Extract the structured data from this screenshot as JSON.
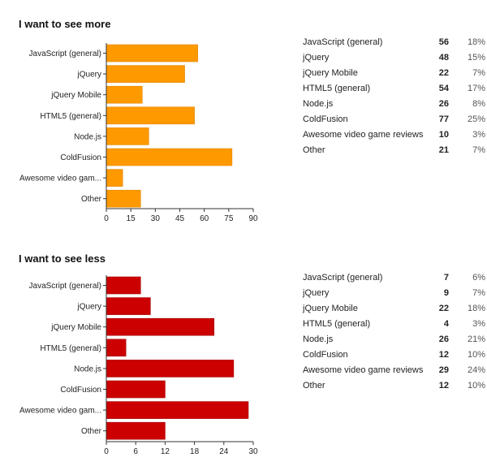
{
  "chart_data": [
    {
      "type": "bar",
      "orientation": "horizontal",
      "title": "I want to see more",
      "categories": [
        "JavaScript (general)",
        "jQuery",
        "jQuery Mobile",
        "HTML5 (general)",
        "Node.js",
        "ColdFusion",
        "Awesome video gam...",
        "Other"
      ],
      "values": [
        56,
        48,
        22,
        54,
        26,
        77,
        10,
        21
      ],
      "xlim": [
        0,
        90
      ],
      "xticks": [
        0,
        15,
        30,
        45,
        60,
        75,
        90
      ],
      "color": "#ff9900",
      "stroke": "#e08600",
      "grid": false,
      "table": [
        {
          "label": "JavaScript (general)",
          "count": "56",
          "percent": "18%"
        },
        {
          "label": "jQuery",
          "count": "48",
          "percent": "15%"
        },
        {
          "label": "jQuery Mobile",
          "count": "22",
          "percent": "7%"
        },
        {
          "label": "HTML5 (general)",
          "count": "54",
          "percent": "17%"
        },
        {
          "label": "Node.js",
          "count": "26",
          "percent": "8%"
        },
        {
          "label": "ColdFusion",
          "count": "77",
          "percent": "25%"
        },
        {
          "label": "Awesome video game reviews",
          "count": "10",
          "percent": "3%"
        },
        {
          "label": "Other",
          "count": "21",
          "percent": "7%"
        }
      ]
    },
    {
      "type": "bar",
      "orientation": "horizontal",
      "title": "I want to see less",
      "categories": [
        "JavaScript (general)",
        "jQuery",
        "jQuery Mobile",
        "HTML5 (general)",
        "Node.js",
        "ColdFusion",
        "Awesome video gam...",
        "Other"
      ],
      "values": [
        7,
        9,
        22,
        4,
        26,
        12,
        29,
        12
      ],
      "xlim": [
        0,
        30
      ],
      "xticks": [
        0,
        6,
        12,
        18,
        24,
        30
      ],
      "color": "#cc0000",
      "stroke": "#a30000",
      "grid": false,
      "table": [
        {
          "label": "JavaScript (general)",
          "count": "7",
          "percent": "6%"
        },
        {
          "label": "jQuery",
          "count": "9",
          "percent": "7%"
        },
        {
          "label": "jQuery Mobile",
          "count": "22",
          "percent": "18%"
        },
        {
          "label": "HTML5 (general)",
          "count": "4",
          "percent": "3%"
        },
        {
          "label": "Node.js",
          "count": "26",
          "percent": "21%"
        },
        {
          "label": "ColdFusion",
          "count": "12",
          "percent": "10%"
        },
        {
          "label": "Awesome video game reviews",
          "count": "29",
          "percent": "24%"
        },
        {
          "label": "Other",
          "count": "12",
          "percent": "10%"
        }
      ]
    }
  ]
}
